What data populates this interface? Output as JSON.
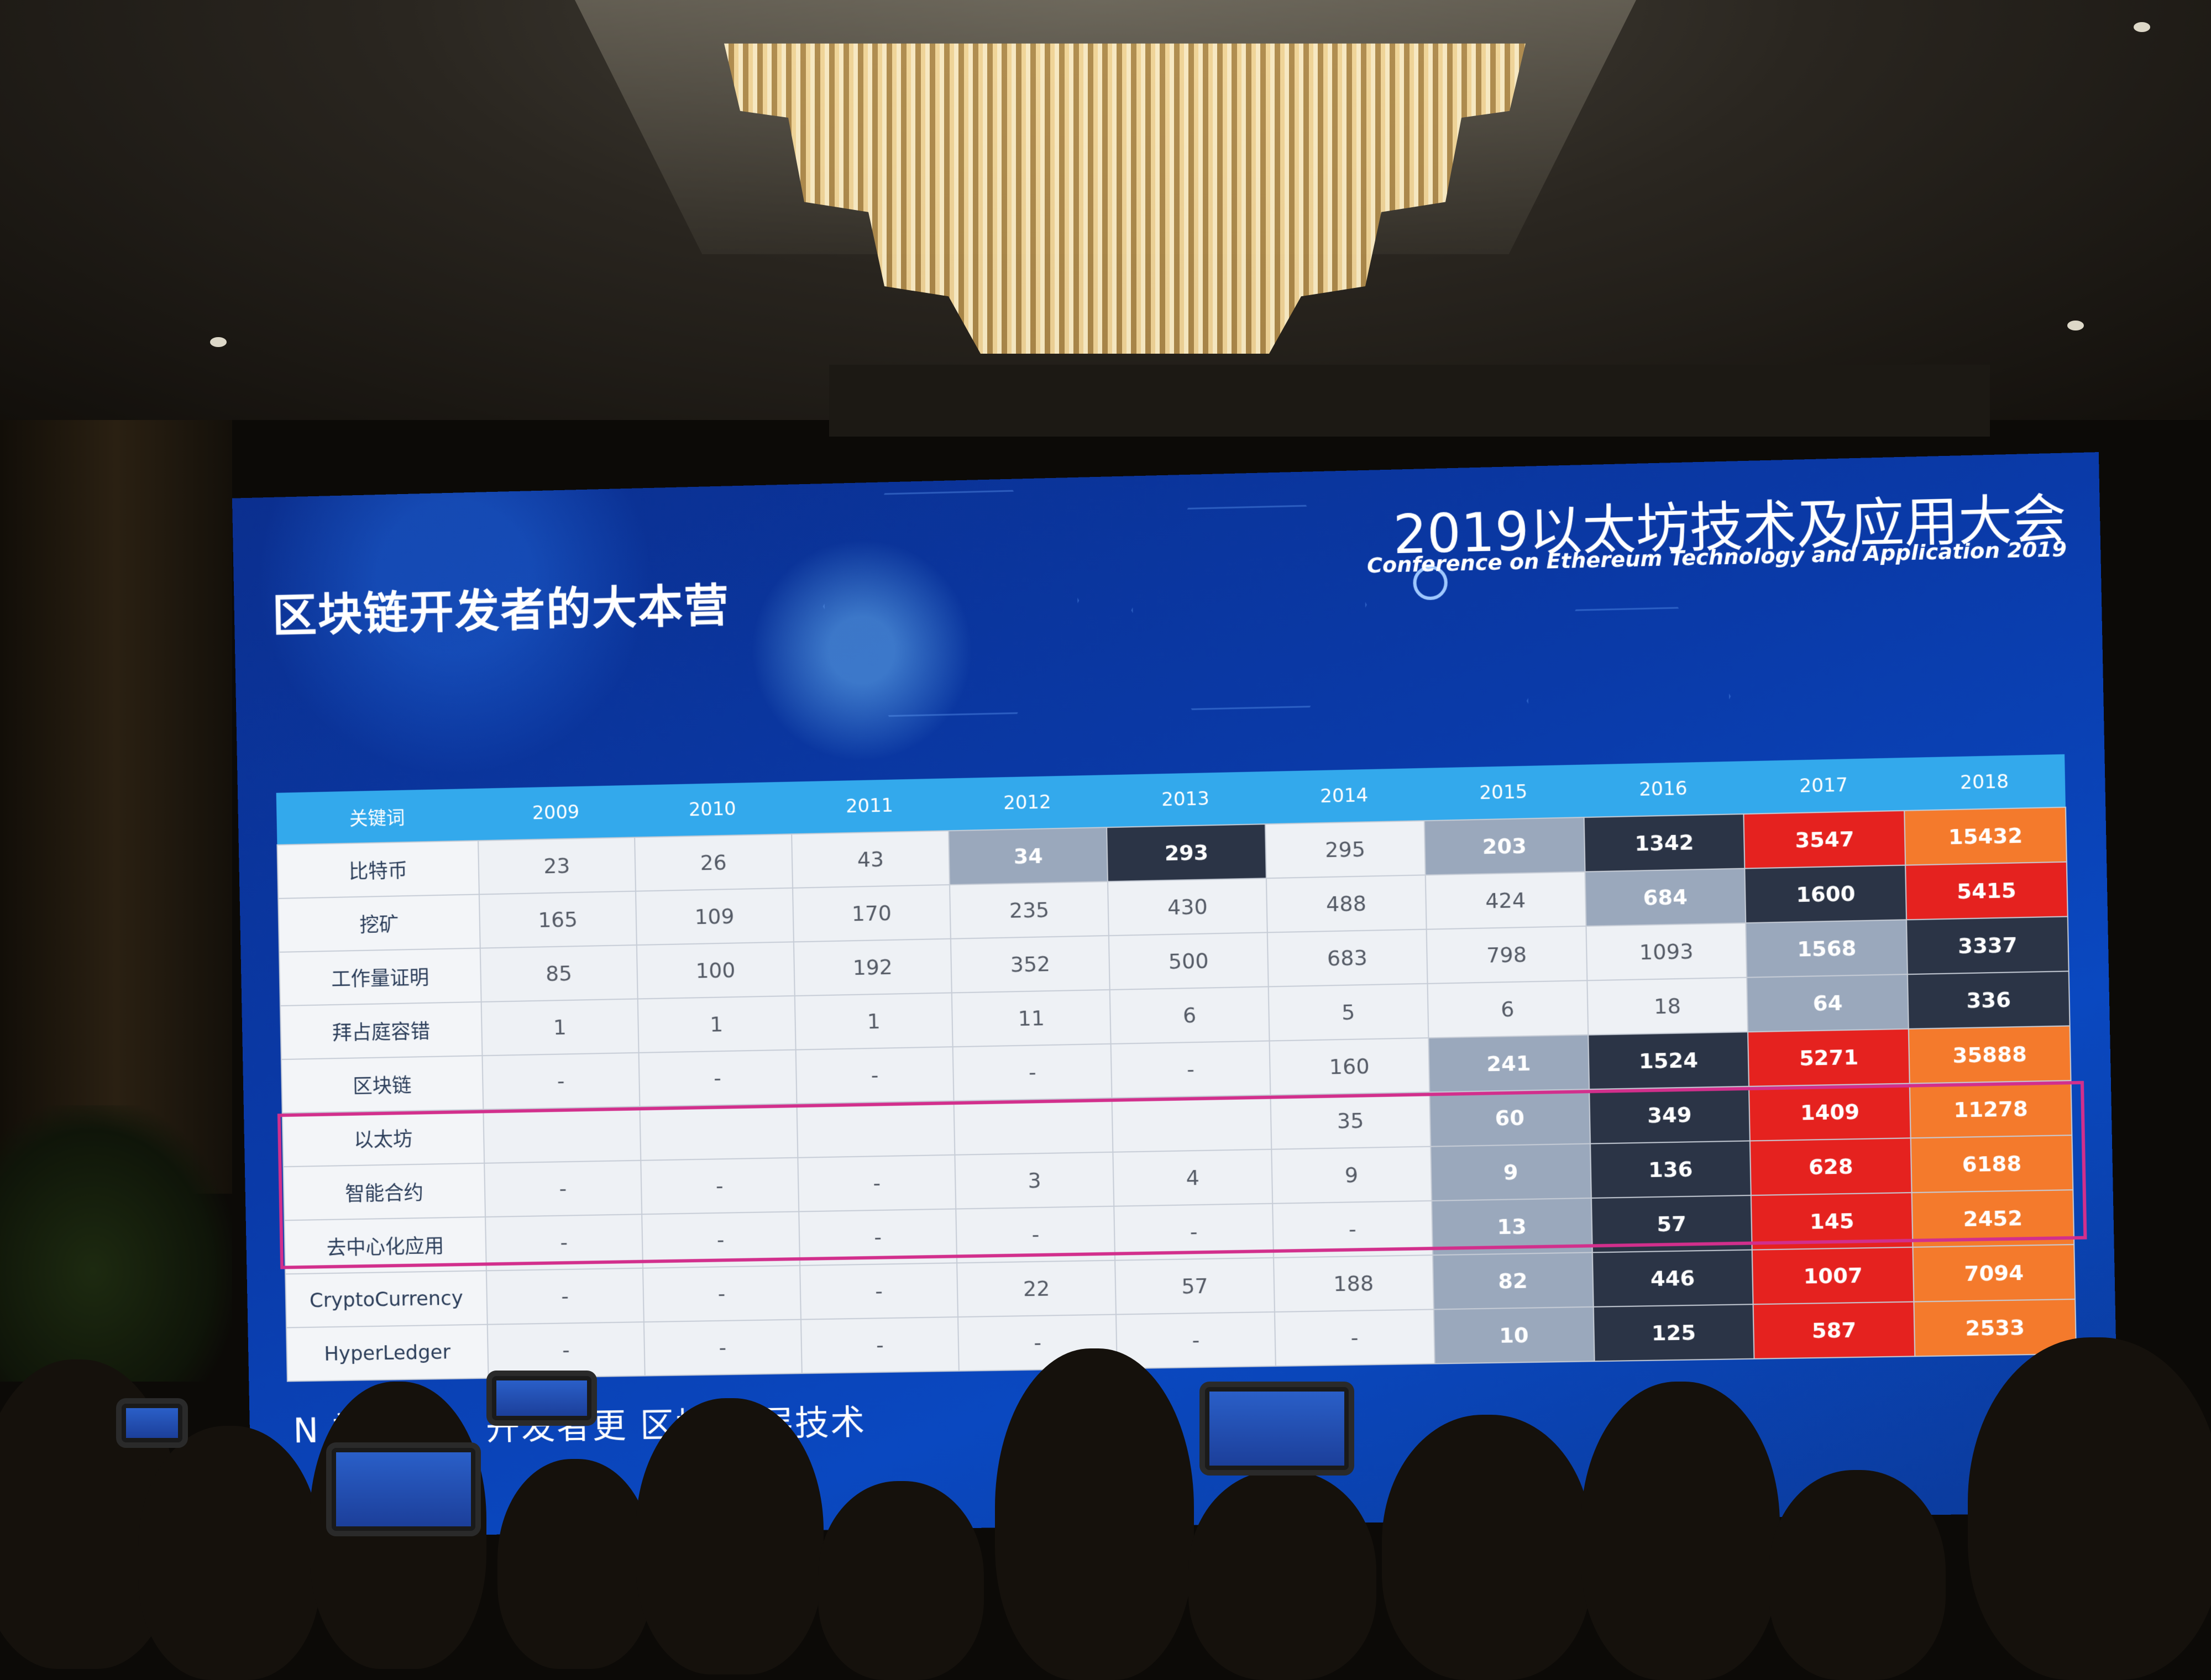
{
  "slide": {
    "title": "区块链开发者的大本营",
    "conference_title": "2019以太坊技术及应用大会",
    "conference_subtitle": "Conference on Ethereum Technology and Application 2019",
    "caption": "N 社区 律，开发者更 区块 底层技术"
  },
  "table": {
    "header": [
      "关键词",
      "2009",
      "2010",
      "2011",
      "2012",
      "2013",
      "2014",
      "2015",
      "2016",
      "2017",
      "2018"
    ],
    "rows": [
      {
        "keyword": "比特币",
        "values": [
          "23",
          "26",
          "43",
          "34",
          "293",
          "295",
          "203",
          "1342",
          "3547",
          "15432"
        ]
      },
      {
        "keyword": "挖矿",
        "values": [
          "165",
          "109",
          "170",
          "235",
          "430",
          "488",
          "424",
          "684",
          "1600",
          "5415"
        ]
      },
      {
        "keyword": "工作量证明",
        "values": [
          "85",
          "100",
          "192",
          "352",
          "500",
          "683",
          "798",
          "1093",
          "1568",
          "3337"
        ]
      },
      {
        "keyword": "拜占庭容错",
        "values": [
          "1",
          "1",
          "1",
          "11",
          "6",
          "5",
          "6",
          "18",
          "64",
          "336"
        ]
      },
      {
        "keyword": "区块链",
        "values": [
          "-",
          "-",
          "-",
          "-",
          "-",
          "160",
          "241",
          "1524",
          "5271",
          "35888"
        ]
      },
      {
        "keyword": "以太坊",
        "values": [
          "",
          "",
          "",
          "",
          "",
          "35",
          "60",
          "349",
          "1409",
          "11278"
        ]
      },
      {
        "keyword": "智能合约",
        "values": [
          "-",
          "-",
          "-",
          "3",
          "4",
          "9",
          "9",
          "136",
          "628",
          "6188"
        ]
      },
      {
        "keyword": "去中心化应用",
        "values": [
          "-",
          "-",
          "-",
          "-",
          "-",
          "-",
          "13",
          "57",
          "145",
          "2452"
        ]
      },
      {
        "keyword": "CryptoCurrency",
        "values": [
          "-",
          "-",
          "-",
          "22",
          "57",
          "188",
          "82",
          "446",
          "1007",
          "7094"
        ]
      },
      {
        "keyword": "HyperLedger",
        "values": [
          "-",
          "-",
          "-",
          "-",
          "-",
          "-",
          "10",
          "125",
          "587",
          "2533"
        ]
      }
    ],
    "cell_colors": {
      "light_steel": "#9aa8bc",
      "dark_slate": "#2b3446",
      "red": "#e5221f",
      "orange": "#f47a2c",
      "header_blue": "#33a9ec",
      "highlight_border": "#d22f8c"
    }
  }
}
